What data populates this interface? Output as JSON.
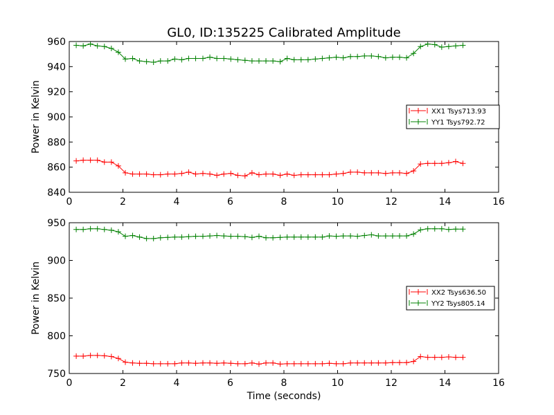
{
  "chart_data": [
    {
      "type": "line",
      "title": "GL0, ID:135225 Calibrated Amplitude",
      "xlabel": "",
      "ylabel": "Power in Kelvin",
      "xlim": [
        0,
        16
      ],
      "ylim": [
        840,
        960
      ],
      "xticks": [
        0,
        2,
        4,
        6,
        8,
        10,
        12,
        14,
        16
      ],
      "yticks": [
        840,
        860,
        880,
        900,
        920,
        940,
        960
      ],
      "legend_position": "center-right",
      "grid": false,
      "x": [
        0.26,
        0.52,
        0.79,
        1.05,
        1.31,
        1.57,
        1.83,
        2.09,
        2.36,
        2.62,
        2.88,
        3.14,
        3.4,
        3.67,
        3.93,
        4.19,
        4.45,
        4.71,
        4.98,
        5.24,
        5.5,
        5.76,
        6.02,
        6.28,
        6.55,
        6.81,
        7.07,
        7.33,
        7.59,
        7.86,
        8.12,
        8.38,
        8.64,
        8.9,
        9.17,
        9.43,
        9.69,
        9.95,
        10.21,
        10.48,
        10.74,
        11.0,
        11.26,
        11.52,
        11.79,
        12.05,
        12.31,
        12.57,
        12.83,
        13.09,
        13.36,
        13.62,
        13.88,
        14.14,
        14.4,
        14.67
      ],
      "series": [
        {
          "name": "XX1 Tsys713.93",
          "color": "#ff0000",
          "values": [
            865,
            865.5,
            865.5,
            865.5,
            864,
            864,
            861,
            855.5,
            854.5,
            854.5,
            854.5,
            854,
            854,
            854.5,
            854.5,
            855,
            856,
            854.5,
            855,
            854.5,
            853.5,
            854.5,
            855,
            853.5,
            853,
            855.5,
            854,
            854.5,
            854.5,
            853.5,
            854.5,
            853.5,
            854,
            854,
            854,
            854,
            854,
            854.5,
            855,
            856,
            856,
            855.5,
            855.5,
            855.5,
            855,
            855.5,
            855.5,
            855,
            857,
            862.5,
            863,
            863,
            863,
            863.5,
            864.5,
            863
          ]
        },
        {
          "name": "YY1 Tsys792.72",
          "color": "#008000",
          "values": [
            957,
            956.5,
            958,
            956.5,
            956,
            954.5,
            951.5,
            946,
            946.5,
            944.5,
            944,
            943.5,
            944.5,
            944.5,
            946,
            945.5,
            946.5,
            946.5,
            946.5,
            947.5,
            946.5,
            946.5,
            946,
            945.5,
            945,
            944.5,
            944.5,
            944.5,
            944.5,
            944,
            946.5,
            945.5,
            945.5,
            945.5,
            946,
            946.5,
            947,
            947.5,
            947,
            948,
            948,
            948.5,
            948.5,
            948,
            947,
            947.5,
            947.5,
            947,
            950.5,
            956,
            958,
            957.5,
            955.5,
            956,
            956.5,
            957
          ]
        }
      ]
    },
    {
      "type": "line",
      "title": "",
      "xlabel": "Time (seconds)",
      "ylabel": "Power in Kelvin",
      "xlim": [
        0,
        16
      ],
      "ylim": [
        750,
        950
      ],
      "xticks": [
        0,
        2,
        4,
        6,
        8,
        10,
        12,
        14,
        16
      ],
      "yticks": [
        750,
        800,
        850,
        900,
        950
      ],
      "legend_position": "center-right",
      "grid": false,
      "x": [
        0.26,
        0.52,
        0.79,
        1.05,
        1.31,
        1.57,
        1.83,
        2.09,
        2.36,
        2.62,
        2.88,
        3.14,
        3.4,
        3.67,
        3.93,
        4.19,
        4.45,
        4.71,
        4.98,
        5.24,
        5.5,
        5.76,
        6.02,
        6.28,
        6.55,
        6.81,
        7.07,
        7.33,
        7.59,
        7.86,
        8.12,
        8.38,
        8.64,
        8.9,
        9.17,
        9.43,
        9.69,
        9.95,
        10.21,
        10.48,
        10.74,
        11.0,
        11.26,
        11.52,
        11.79,
        12.05,
        12.31,
        12.57,
        12.83,
        13.09,
        13.36,
        13.62,
        13.88,
        14.14,
        14.4,
        14.67
      ],
      "series": [
        {
          "name": "XX2 Tsys636.50",
          "color": "#ff0000",
          "values": [
            773,
            773,
            774,
            774,
            773.5,
            772.5,
            770,
            765,
            764,
            763.5,
            763.5,
            763,
            763,
            763,
            763,
            764,
            764,
            763.5,
            764,
            764,
            763.5,
            764,
            763.5,
            763,
            763,
            764,
            762.5,
            764,
            764,
            762.5,
            763,
            763,
            763,
            763,
            763,
            763,
            763.5,
            763,
            763,
            764,
            764,
            764,
            764,
            764,
            764,
            764.5,
            764.5,
            764.5,
            766,
            772.5,
            771.5,
            771.5,
            771.5,
            772,
            771.5,
            771.5
          ]
        },
        {
          "name": "YY2 Tsys805.14",
          "color": "#008000",
          "values": [
            941,
            941,
            942,
            942,
            941,
            940,
            938,
            932,
            933,
            931,
            929,
            929,
            930,
            930.5,
            931,
            931,
            931.5,
            932,
            932,
            932.5,
            933,
            932.5,
            932,
            932,
            931.5,
            930.5,
            932,
            930,
            930,
            930.5,
            931,
            931,
            931,
            931,
            931,
            931,
            932.5,
            932,
            932.5,
            932.5,
            932,
            933,
            934,
            932.5,
            932.5,
            932.5,
            932.5,
            932.5,
            935,
            940.5,
            942,
            942,
            942,
            941,
            941.5,
            941.5
          ]
        }
      ]
    }
  ]
}
